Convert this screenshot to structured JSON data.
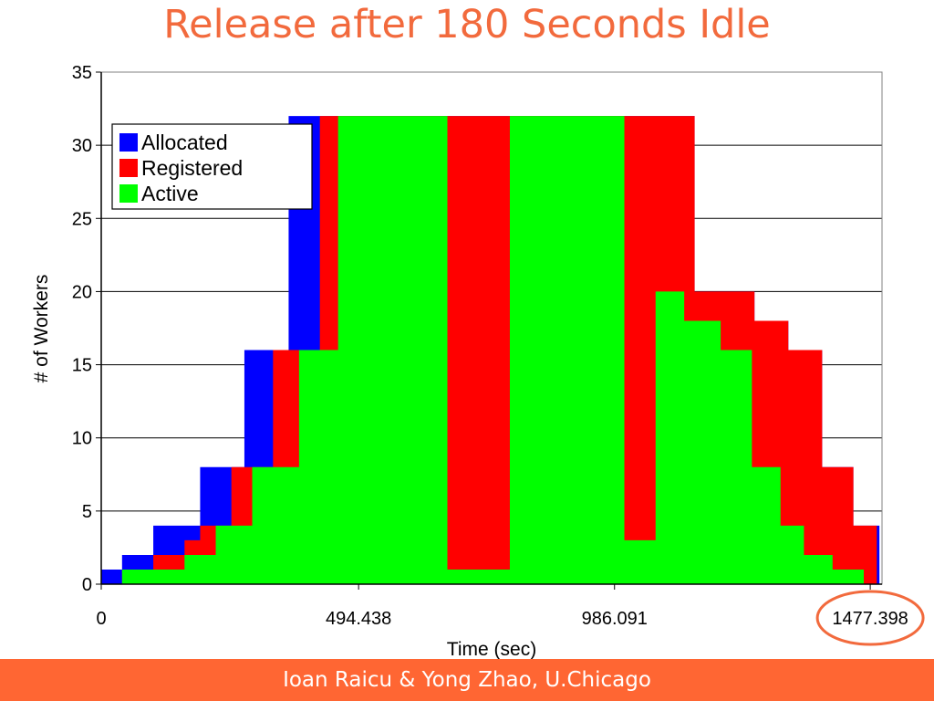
{
  "slide": {
    "title": "Release after 180 Seconds Idle",
    "footer": "Ioan Raicu & Yong Zhao, U.Chicago"
  },
  "colors": {
    "allocated": "#0000ff",
    "registered": "#ff0000",
    "active": "#00ff00",
    "highlight_circle": "#f26a3d",
    "footer_bg": "#ff6633",
    "title": "#f26a3d"
  },
  "chart_data": {
    "type": "area",
    "title": "",
    "xlabel": "Time (sec)",
    "ylabel": "# of Workers",
    "xlim": [
      0,
      1500
    ],
    "ylim": [
      0,
      35
    ],
    "yticks": [
      0,
      5,
      10,
      15,
      20,
      25,
      30,
      35
    ],
    "xticks": [
      0,
      494.438,
      986.091,
      1477.398
    ],
    "xtick_labels": [
      "0",
      "494.438",
      "986.091",
      "1477.398"
    ],
    "highlighted_tick": "1477.398",
    "grid": "horizontal",
    "legend_position": "top-left",
    "series": [
      {
        "name": "Allocated",
        "color_key": "allocated",
        "x": [
          0,
          40,
          40,
          100,
          100,
          190,
          190,
          275,
          275,
          360,
          360,
          475,
          475,
          1140,
          1140,
          1255,
          1255,
          1320,
          1320,
          1385,
          1385,
          1445,
          1445,
          1495,
          1495
        ],
        "y": [
          1,
          1,
          2,
          2,
          4,
          4,
          8,
          8,
          16,
          16,
          32,
          32,
          32,
          32,
          20,
          20,
          18,
          18,
          16,
          16,
          8,
          8,
          4,
          4,
          0
        ]
      },
      {
        "name": "Registered",
        "color_key": "registered",
        "x": [
          0,
          40,
          40,
          100,
          100,
          160,
          160,
          190,
          190,
          250,
          250,
          330,
          330,
          380,
          380,
          420,
          420,
          475,
          475,
          505,
          505,
          1140,
          1140,
          1255,
          1255,
          1320,
          1320,
          1385,
          1385,
          1445,
          1445,
          1490,
          1490
        ],
        "y": [
          0,
          0,
          1,
          1,
          2,
          2,
          3,
          3,
          4,
          4,
          8,
          8,
          16,
          16,
          16,
          16,
          32,
          32,
          32,
          32,
          32,
          32,
          20,
          20,
          18,
          18,
          16,
          16,
          8,
          8,
          4,
          4,
          0
        ]
      },
      {
        "name": "Active",
        "color_key": "active",
        "x": [
          0,
          40,
          40,
          100,
          100,
          160,
          160,
          190,
          190,
          220,
          220,
          250,
          250,
          290,
          290,
          330,
          330,
          380,
          380,
          420,
          420,
          455,
          455,
          555,
          555,
          665,
          665,
          785,
          785,
          1005,
          1005,
          1065,
          1065,
          1120,
          1120,
          1190,
          1190,
          1250,
          1250,
          1305,
          1305,
          1350,
          1350,
          1405,
          1405,
          1465,
          1465,
          1490,
          1490
        ],
        "y": [
          0,
          0,
          1,
          1,
          1,
          1,
          2,
          2,
          2,
          2,
          4,
          4,
          4,
          4,
          8,
          8,
          8,
          8,
          16,
          16,
          16,
          16,
          32,
          32,
          32,
          32,
          1,
          1,
          32,
          32,
          3,
          3,
          20,
          20,
          18,
          18,
          16,
          16,
          8,
          8,
          4,
          4,
          2,
          2,
          1,
          1,
          0,
          0,
          0
        ]
      }
    ]
  }
}
